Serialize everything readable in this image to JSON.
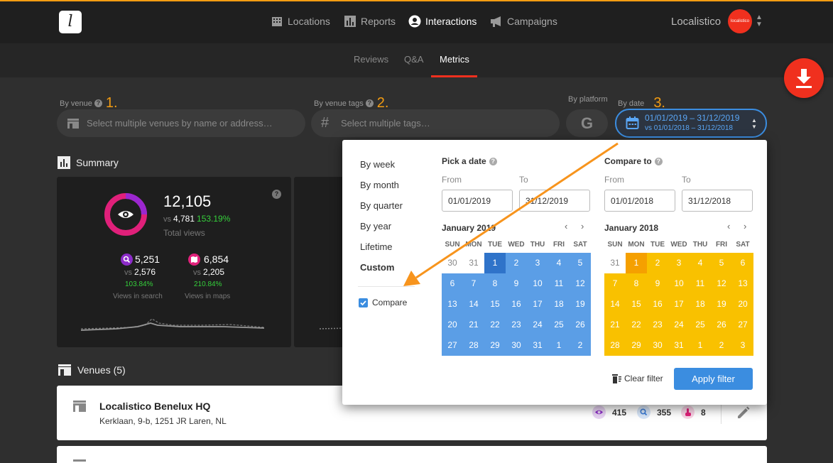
{
  "nav": {
    "logo": "l",
    "items": [
      {
        "label": "Locations",
        "icon": "building-icon"
      },
      {
        "label": "Reports",
        "icon": "bar-chart-icon"
      },
      {
        "label": "Interactions",
        "icon": "user-circle-icon"
      },
      {
        "label": "Campaigns",
        "icon": "megaphone-icon"
      }
    ],
    "brand": "Localistico",
    "avatar_text": "localistico"
  },
  "subnav": {
    "tabs": [
      "Reviews",
      "Q&A",
      "Metrics"
    ],
    "active": "Metrics"
  },
  "filters": {
    "venue": {
      "label": "By venue",
      "step": "1.",
      "placeholder": "Select multiple venues by name or address…"
    },
    "tags": {
      "label": "By venue tags",
      "step": "2.",
      "placeholder": "Select multiple tags…"
    },
    "platform": {
      "label": "By platform",
      "icon_text": "G"
    },
    "date": {
      "label": "By date",
      "step": "3.",
      "value": "01/01/2019 – 31/12/2019",
      "compare": "vs 01/01/2018 – 31/12/2018"
    }
  },
  "summary": {
    "title": "Summary",
    "total": "12,105",
    "vs_prefix": "vs",
    "prev": "4,781",
    "change": "153.19%",
    "label": "Total views",
    "search": {
      "value": "5,251",
      "prev": "2,576",
      "change": "103.84%",
      "label": "Views in search"
    },
    "maps": {
      "value": "6,854",
      "prev": "2,205",
      "change": "210.84%",
      "label": "Views in maps"
    }
  },
  "venues": {
    "title": "Venues (5)",
    "items": [
      {
        "name": "Localistico Benelux HQ",
        "address": "Kerklaan, 9-b, 1251 JR Laren, NL",
        "views": "415",
        "searches": "355",
        "actions": "8"
      }
    ]
  },
  "datepicker": {
    "periods": [
      "By week",
      "By month",
      "By quarter",
      "By year",
      "Lifetime",
      "Custom"
    ],
    "active_period": "Custom",
    "compare_label": "Compare",
    "compare_checked": true,
    "pick_title": "Pick a date",
    "compare_title": "Compare to",
    "from_label": "From",
    "to_label": "To",
    "pick_from": "01/01/2019",
    "pick_to": "31/12/2019",
    "compare_from": "01/01/2018",
    "compare_to": "31/12/2018",
    "left_month": "January 2019",
    "right_month": "January 2018",
    "weekdays": [
      "SUN",
      "MON",
      "TUE",
      "WED",
      "THU",
      "FRI",
      "SAT"
    ],
    "left_days": [
      "30",
      "31",
      "1",
      "2",
      "3",
      "4",
      "5",
      "6",
      "7",
      "8",
      "9",
      "10",
      "11",
      "12",
      "13",
      "14",
      "15",
      "16",
      "17",
      "18",
      "19",
      "20",
      "21",
      "22",
      "23",
      "24",
      "25",
      "26",
      "27",
      "28",
      "29",
      "30",
      "31",
      "1",
      "2"
    ],
    "right_days": [
      "31",
      "1",
      "2",
      "3",
      "4",
      "5",
      "6",
      "7",
      "8",
      "9",
      "10",
      "11",
      "12",
      "13",
      "14",
      "15",
      "16",
      "17",
      "18",
      "19",
      "20",
      "21",
      "22",
      "23",
      "24",
      "25",
      "26",
      "27",
      "28",
      "29",
      "30",
      "31",
      "1",
      "2",
      "3"
    ],
    "clear_label": "Clear filter",
    "apply_label": "Apply filter"
  },
  "colors": {
    "accent": "#f0301e",
    "step": "#f39c12",
    "range_blue": "#5b9ee6",
    "range_blue_selected": "#2f73c9",
    "range_yellow": "#f9c100",
    "range_yellow_selected": "#f5a000",
    "positive": "#35d03b"
  }
}
